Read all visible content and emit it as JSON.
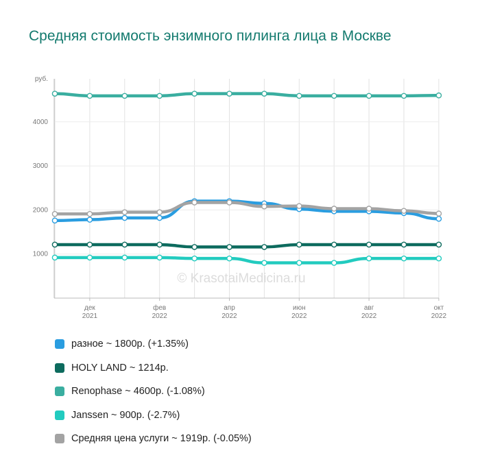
{
  "title": "Средняя стоимость энзимного пилинга лица в Москве",
  "watermark": "© KrasotaiMedicina.ru",
  "chart_data": {
    "type": "line",
    "unit_label": "руб.",
    "yticks": [
      1000,
      2000,
      3000,
      4000
    ],
    "ylim": [
      0,
      4800
    ],
    "grid": true,
    "legend_position": "bottom",
    "x_tick_labels": [
      {
        "index": 1,
        "month": "дек",
        "year": "2021"
      },
      {
        "index": 3,
        "month": "фев",
        "year": "2022"
      },
      {
        "index": 5,
        "month": "апр",
        "year": "2022"
      },
      {
        "index": 7,
        "month": "июн",
        "year": "2022"
      },
      {
        "index": 9,
        "month": "авг",
        "year": "2022"
      },
      {
        "index": 11,
        "month": "окт",
        "year": "2022"
      }
    ],
    "series": [
      {
        "name": "разное",
        "legend": "разное ~ 1800р. (+1.35%)",
        "color": "#2a9de0",
        "values": [
          1760,
          1780,
          1820,
          1820,
          2200,
          2200,
          2150,
          2020,
          1970,
          1970,
          1930,
          1800
        ]
      },
      {
        "name": "HOLY LAND",
        "legend": "HOLY LAND ~ 1214р.",
        "color": "#0d6b5e",
        "values": [
          1214,
          1214,
          1214,
          1214,
          1160,
          1160,
          1160,
          1214,
          1214,
          1214,
          1214,
          1214
        ]
      },
      {
        "name": "Renophase",
        "legend": "Renophase ~ 4600р. (-1.08%)",
        "color": "#3aaea0",
        "values": [
          4640,
          4590,
          4590,
          4590,
          4640,
          4640,
          4640,
          4590,
          4590,
          4590,
          4590,
          4600
        ]
      },
      {
        "name": "Janssen",
        "legend": "Janssen ~ 900р. (-2.7%)",
        "color": "#22cbbf",
        "values": [
          920,
          920,
          920,
          920,
          900,
          900,
          800,
          800,
          800,
          900,
          900,
          900
        ]
      },
      {
        "name": "Средняя цена услуги",
        "legend": "Средняя цена услуги ~ 1919р. (-0.05%)",
        "color": "#a3a3a3",
        "values": [
          1910,
          1910,
          1950,
          1950,
          2170,
          2170,
          2080,
          2090,
          2030,
          2030,
          1980,
          1919
        ]
      }
    ]
  }
}
